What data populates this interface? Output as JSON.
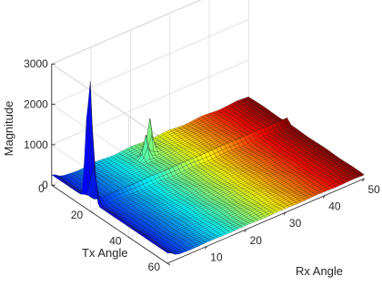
{
  "chart_data": {
    "type": "surface",
    "title": "",
    "xlabel": "Rx Angle",
    "ylabel": "Tx Angle",
    "zlabel": "Magnitude",
    "x_ticks": [
      10,
      20,
      30,
      40,
      50
    ],
    "y_ticks": [
      0,
      20,
      40,
      60
    ],
    "z_ticks": [
      0,
      1000,
      2000,
      3000
    ],
    "xlim": [
      0,
      50
    ],
    "ylim": [
      0,
      60
    ],
    "zlim": [
      0,
      3000
    ],
    "grid": true,
    "colormap": "jet",
    "surface_sample": {
      "description_free": true,
      "rx": [
        0,
        5,
        10,
        15,
        20,
        25,
        30,
        35,
        40,
        45,
        50
      ],
      "tx": [
        0,
        10,
        20,
        30,
        40,
        50,
        60
      ],
      "baseline": 70,
      "peaks": [
        {
          "rx": 0,
          "tx": 20,
          "magnitude": 2700
        },
        {
          "rx": 0,
          "tx": 18,
          "magnitude": 1800
        },
        {
          "rx": 0,
          "tx": 22,
          "magnitude": 850
        },
        {
          "rx": 22,
          "tx": 6,
          "magnitude": 900
        },
        {
          "rx": 20,
          "tx": 8,
          "magnitude": 650
        }
      ]
    },
    "colors": {
      "low": "#00007f",
      "mid": "#7fff7f",
      "high": "#7f0000"
    }
  }
}
